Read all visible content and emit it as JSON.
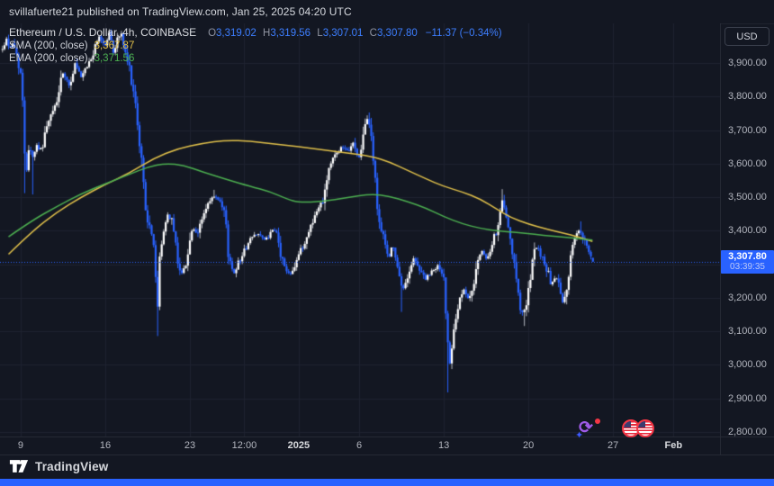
{
  "top_bar": {
    "publish_text": "svillafuerte21 published on TradingView.com, Jan 25, 2025 04:20 UTC"
  },
  "legend": {
    "title": "Ethereum / U.S. Dollar, 4h, COINBASE",
    "ohlc": {
      "o_label": "O",
      "o": "3,319.02",
      "h_label": "H",
      "h": "3,319.56",
      "l_label": "L",
      "l": "3,307.01",
      "c_label": "C",
      "c": "3,307.80",
      "change": "−11.37 (−0.34%)"
    },
    "sma": {
      "label": "SMA (200, close)",
      "value": "3,367.87"
    },
    "ema": {
      "label": "EMA (200, close)",
      "value": "3,371.56"
    }
  },
  "price_axis": {
    "currency_button": "USD",
    "ticks": [
      {
        "label": "3,900.00",
        "price": 3900
      },
      {
        "label": "3,800.00",
        "price": 3800
      },
      {
        "label": "3,700.00",
        "price": 3700
      },
      {
        "label": "3,600.00",
        "price": 3600
      },
      {
        "label": "3,500.00",
        "price": 3500
      },
      {
        "label": "3,400.00",
        "price": 3400
      },
      {
        "label": "3,300.00",
        "price": 3300
      },
      {
        "label": "3,200.00",
        "price": 3200
      },
      {
        "label": "3,100.00",
        "price": 3100
      },
      {
        "label": "3,000.00",
        "price": 3000
      },
      {
        "label": "2,900.00",
        "price": 2900
      },
      {
        "label": "2,800.00",
        "price": 2800
      }
    ],
    "last_price_badge": {
      "price_label": "3,307.80",
      "countdown": "03:39:35"
    }
  },
  "time_axis": {
    "ticks": [
      {
        "label": "9",
        "day": 1
      },
      {
        "label": "16",
        "day": 8
      },
      {
        "label": "23",
        "day": 15
      },
      {
        "label": "12:00",
        "day": 19.5
      },
      {
        "label": "2025",
        "day": 24,
        "emphasis": true
      },
      {
        "label": "6",
        "day": 29
      },
      {
        "label": "13",
        "day": 36
      },
      {
        "label": "20",
        "day": 43
      },
      {
        "label": "27",
        "day": 50
      },
      {
        "label": "Feb",
        "day": 55,
        "emphasis": true
      }
    ]
  },
  "footer": {
    "brand": "TradingView"
  },
  "colors": {
    "background": "#131722",
    "grid": "#1e2230",
    "up": "#ffffff",
    "up_wick": "#b8bbc2",
    "down": "#2962ff",
    "sma": "#e0c04a",
    "ema": "#4caf50",
    "accent": "#2962ff",
    "axis_text": "#b2b5be",
    "red": "#f23645",
    "purple": "#a05be8"
  },
  "chart_data": {
    "type": "candlestick",
    "symbol": "Ethereum / U.S. Dollar",
    "exchange": "COINBASE",
    "interval": "4h",
    "axis_range": [
      2800,
      3900
    ],
    "time_span": "Dec 8 2024 – Jan 25 2025, ticks weekly (Mon), chart grid on",
    "legend_position": "top-left",
    "last_price": 3307.8,
    "last_candle": {
      "o": 3319.02,
      "h": 3319.56,
      "l": 3307.01,
      "c": 3307.8
    },
    "day_start": -0.5,
    "day_end": 48.33,
    "render_seed": 42,
    "price_path_anchors": [
      [
        -0.5,
        3940
      ],
      [
        -0.2,
        3975
      ],
      [
        0.1,
        3945
      ],
      [
        0.4,
        3960
      ],
      [
        0.7,
        3920
      ],
      [
        1.0,
        3870
      ],
      [
        1.2,
        3760
      ],
      [
        1.35,
        3620
      ],
      [
        1.5,
        3585
      ],
      [
        1.7,
        3660
      ],
      [
        2.0,
        3620
      ],
      [
        2.3,
        3655
      ],
      [
        2.7,
        3640
      ],
      [
        3.0,
        3690
      ],
      [
        3.5,
        3740
      ],
      [
        4.0,
        3788
      ],
      [
        4.5,
        3868
      ],
      [
        5.0,
        3830
      ],
      [
        5.5,
        3898
      ],
      [
        6.0,
        3855
      ],
      [
        6.5,
        3888
      ],
      [
        7.0,
        3928
      ],
      [
        7.5,
        3980
      ],
      [
        8.0,
        3952
      ],
      [
        8.33,
        3992
      ],
      [
        8.67,
        3932
      ],
      [
        9.0,
        3972
      ],
      [
        9.33,
        3988
      ],
      [
        9.67,
        3922
      ],
      [
        10.0,
        3882
      ],
      [
        10.4,
        3802
      ],
      [
        10.7,
        3692
      ],
      [
        11.0,
        3612
      ],
      [
        11.33,
        3472
      ],
      [
        11.67,
        3402
      ],
      [
        12.0,
        3368
      ],
      [
        12.33,
        3162
      ],
      [
        12.5,
        3318
      ],
      [
        12.83,
        3402
      ],
      [
        13.2,
        3452
      ],
      [
        13.6,
        3418
      ],
      [
        14.0,
        3310
      ],
      [
        14.4,
        3265
      ],
      [
        14.8,
        3330
      ],
      [
        15.2,
        3408
      ],
      [
        15.6,
        3385
      ],
      [
        16.0,
        3438
      ],
      [
        16.5,
        3478
      ],
      [
        17.0,
        3502
      ],
      [
        17.4,
        3488
      ],
      [
        17.9,
        3450
      ],
      [
        18.2,
        3320
      ],
      [
        18.6,
        3272
      ],
      [
        19.0,
        3305
      ],
      [
        19.5,
        3340
      ],
      [
        20.0,
        3375
      ],
      [
        20.6,
        3395
      ],
      [
        21.2,
        3370
      ],
      [
        21.8,
        3398
      ],
      [
        22.1,
        3400
      ],
      [
        22.5,
        3330
      ],
      [
        22.9,
        3285
      ],
      [
        23.3,
        3272
      ],
      [
        23.7,
        3300
      ],
      [
        24.0,
        3330
      ],
      [
        24.5,
        3362
      ],
      [
        25.0,
        3418
      ],
      [
        25.5,
        3456
      ],
      [
        26.0,
        3496
      ],
      [
        26.5,
        3588
      ],
      [
        27.0,
        3626
      ],
      [
        27.5,
        3648
      ],
      [
        28.0,
        3636
      ],
      [
        28.5,
        3660
      ],
      [
        29.0,
        3616
      ],
      [
        29.4,
        3696
      ],
      [
        29.7,
        3736
      ],
      [
        30.0,
        3686
      ],
      [
        30.3,
        3556
      ],
      [
        30.6,
        3438
      ],
      [
        31.0,
        3376
      ],
      [
        31.4,
        3320
      ],
      [
        31.8,
        3356
      ],
      [
        32.2,
        3276
      ],
      [
        32.6,
        3220
      ],
      [
        33.0,
        3266
      ],
      [
        33.5,
        3316
      ],
      [
        34.0,
        3286
      ],
      [
        34.5,
        3256
      ],
      [
        35.0,
        3276
      ],
      [
        35.5,
        3296
      ],
      [
        36.0,
        3256
      ],
      [
        36.33,
        3072
      ],
      [
        36.5,
        3008
      ],
      [
        36.83,
        3116
      ],
      [
        37.2,
        3176
      ],
      [
        37.6,
        3226
      ],
      [
        38.0,
        3196
      ],
      [
        38.4,
        3236
      ],
      [
        38.8,
        3306
      ],
      [
        39.2,
        3338
      ],
      [
        39.6,
        3312
      ],
      [
        40.0,
        3352
      ],
      [
        40.3,
        3395
      ],
      [
        40.6,
        3445
      ],
      [
        40.9,
        3495
      ],
      [
        41.2,
        3430
      ],
      [
        41.6,
        3340
      ],
      [
        42.0,
        3265
      ],
      [
        42.3,
        3180
      ],
      [
        42.6,
        3148
      ],
      [
        43.0,
        3215
      ],
      [
        43.3,
        3298
      ],
      [
        43.6,
        3355
      ],
      [
        44.0,
        3330
      ],
      [
        44.4,
        3300
      ],
      [
        44.9,
        3240
      ],
      [
        45.4,
        3262
      ],
      [
        45.8,
        3180
      ],
      [
        46.2,
        3230
      ],
      [
        46.6,
        3355
      ],
      [
        47.0,
        3390
      ],
      [
        47.3,
        3402
      ],
      [
        47.7,
        3360
      ],
      [
        48.0,
        3330
      ],
      [
        48.33,
        3307.8
      ]
    ],
    "wick_extremes": [
      [
        1.4,
        "low",
        3512
      ],
      [
        2.0,
        "low",
        3508
      ],
      [
        8.33,
        "high",
        4001
      ],
      [
        9.33,
        "high",
        3996
      ],
      [
        12.33,
        "low",
        3086
      ],
      [
        17.0,
        "high",
        3522
      ],
      [
        29.7,
        "high",
        3744
      ],
      [
        32.5,
        "low",
        3158
      ],
      [
        36.4,
        "low",
        2918
      ],
      [
        40.9,
        "high",
        3524
      ],
      [
        42.6,
        "low",
        3116
      ],
      [
        47.3,
        "high",
        3428
      ]
    ],
    "overlays": [
      {
        "name": "SMA (200, close)",
        "color": "#e0c04a",
        "last_value": 3367.87,
        "points": [
          [
            0,
            3330
          ],
          [
            2,
            3400
          ],
          [
            4,
            3455
          ],
          [
            6,
            3500
          ],
          [
            8,
            3538
          ],
          [
            10,
            3572
          ],
          [
            12,
            3616
          ],
          [
            14,
            3645
          ],
          [
            16,
            3660
          ],
          [
            18,
            3670
          ],
          [
            20,
            3667
          ],
          [
            22,
            3658
          ],
          [
            24,
            3651
          ],
          [
            26,
            3641
          ],
          [
            28,
            3632
          ],
          [
            30,
            3622
          ],
          [
            31.5,
            3605
          ],
          [
            33,
            3580
          ],
          [
            34.5,
            3555
          ],
          [
            36,
            3532
          ],
          [
            37.5,
            3516
          ],
          [
            39,
            3495
          ],
          [
            40.5,
            3462
          ],
          [
            41.5,
            3440
          ],
          [
            43,
            3420
          ],
          [
            44.5,
            3405
          ],
          [
            46,
            3392
          ],
          [
            47,
            3383
          ],
          [
            48.3,
            3368
          ]
        ]
      },
      {
        "name": "EMA (200, close)",
        "color": "#4caf50",
        "last_value": 3371.56,
        "points": [
          [
            0,
            3382
          ],
          [
            2,
            3432
          ],
          [
            4,
            3472
          ],
          [
            6,
            3510
          ],
          [
            8,
            3540
          ],
          [
            10,
            3568
          ],
          [
            11.5,
            3590
          ],
          [
            13,
            3601
          ],
          [
            14.5,
            3595
          ],
          [
            16,
            3576
          ],
          [
            18,
            3553
          ],
          [
            20,
            3532
          ],
          [
            21.5,
            3518
          ],
          [
            23,
            3495
          ],
          [
            24,
            3484
          ],
          [
            26,
            3487
          ],
          [
            28,
            3499
          ],
          [
            30,
            3510
          ],
          [
            31.5,
            3503
          ],
          [
            33,
            3487
          ],
          [
            34.5,
            3468
          ],
          [
            36,
            3442
          ],
          [
            37.5,
            3421
          ],
          [
            39,
            3407
          ],
          [
            40.5,
            3399
          ],
          [
            42,
            3395
          ],
          [
            43.5,
            3389
          ],
          [
            45,
            3384
          ],
          [
            46.5,
            3379
          ],
          [
            48.3,
            3372
          ]
        ]
      }
    ],
    "event_icons": [
      {
        "name": "economic-event-cycle",
        "day": 48.0,
        "colors": [
          "purple",
          "red-dot",
          "blue-spark"
        ]
      },
      {
        "name": "us-economic-events",
        "day": 51.5,
        "flags": 2
      }
    ]
  }
}
